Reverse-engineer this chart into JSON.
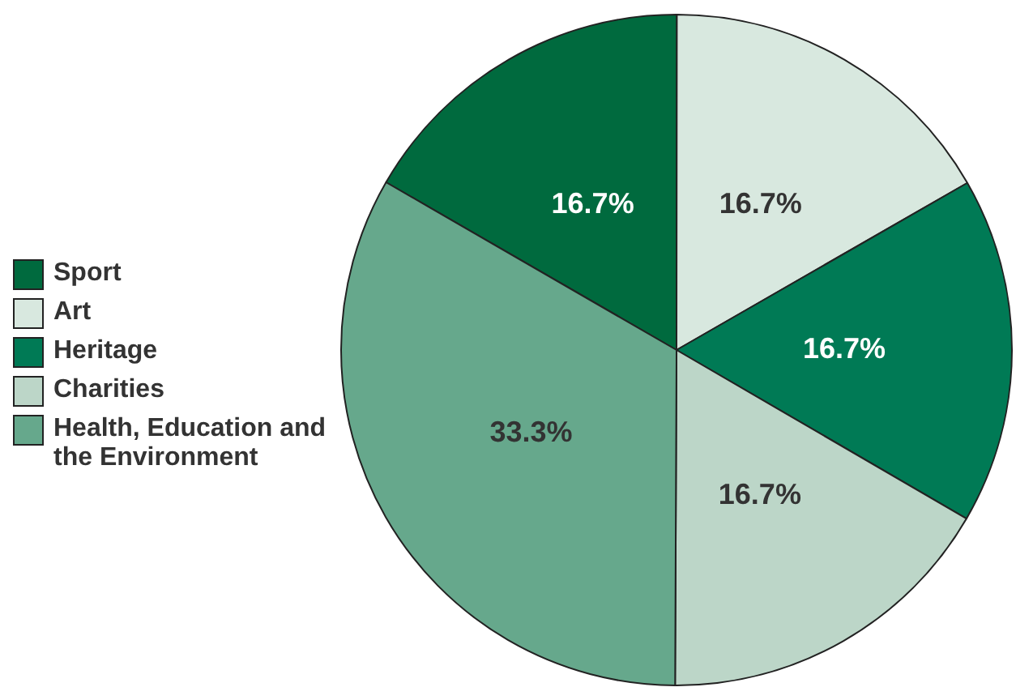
{
  "chart_data": {
    "type": "pie",
    "categories": [
      "Sport",
      "Art",
      "Heritage",
      "Charities",
      "Health, Education and the Environment"
    ],
    "values": [
      16.7,
      16.7,
      16.7,
      16.7,
      33.3
    ],
    "value_labels": [
      "16.7%",
      "16.7%",
      "16.7%",
      "16.7%",
      "33.3%"
    ],
    "colors": [
      "#006a3e",
      "#d8e8df",
      "#007a55",
      "#bcd6c8",
      "#66a88c"
    ],
    "legend": "left"
  }
}
